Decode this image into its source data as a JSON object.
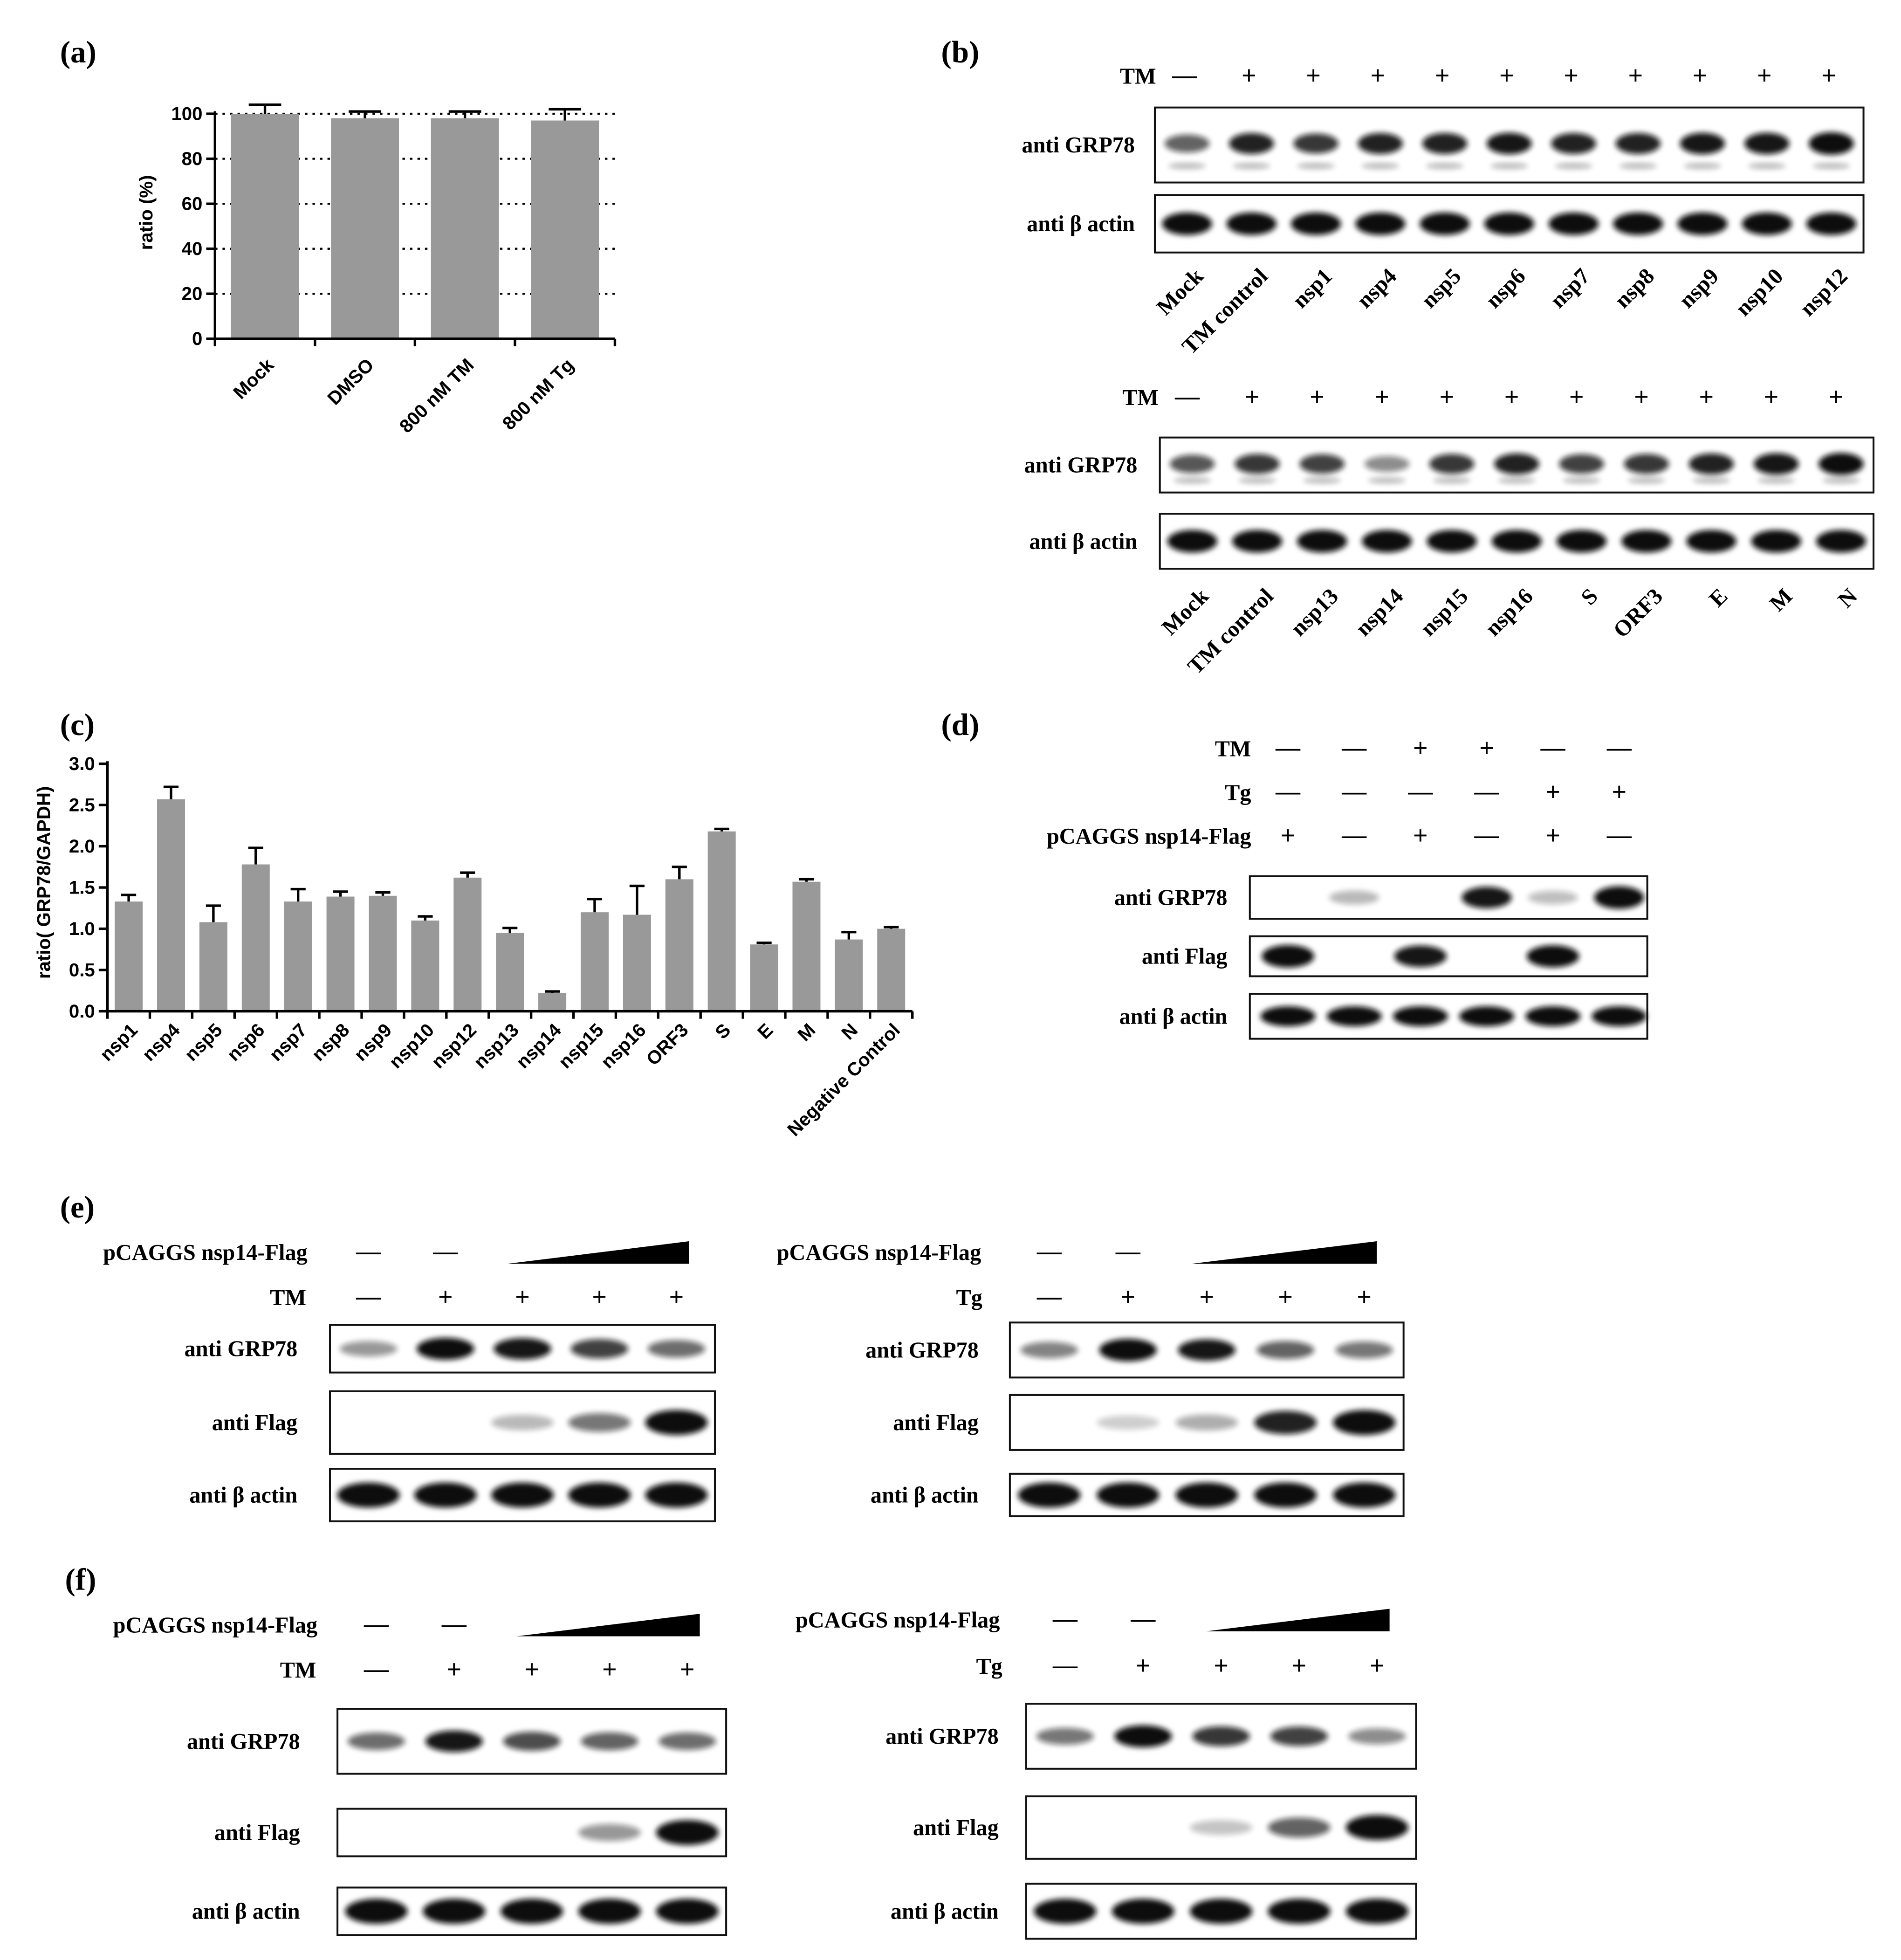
{
  "panels": {
    "a": "(a)",
    "b": "(b)",
    "c": "(c)",
    "d": "(d)",
    "e": "(e)",
    "f": "(f)"
  },
  "chart_a": {
    "type": "bar",
    "ylabel": "ratio (%)",
    "ylim": [
      0,
      100
    ],
    "yticks": [
      0,
      20,
      40,
      60,
      80,
      100
    ],
    "categories": [
      "Mock",
      "DMSO",
      "800 nM TM",
      "800 nM Tg"
    ],
    "values": [
      100,
      98,
      98,
      97
    ],
    "errors": [
      4,
      3,
      3,
      5
    ],
    "grid": "dotted horizontal",
    "bar_color": "#999999"
  },
  "chart_c": {
    "type": "bar",
    "ylabel": "ratio( GRP78/GAPDH)",
    "ylim": [
      0,
      3.0
    ],
    "yticks": [
      "0.0",
      "0.5",
      "1.0",
      "1.5",
      "2.0",
      "2.5",
      "3.0"
    ],
    "categories": [
      "nsp1",
      "nsp4",
      "nsp5",
      "nsp6",
      "nsp7",
      "nsp8",
      "nsp9",
      "nsp10",
      "nsp12",
      "nsp13",
      "nsp14",
      "nsp15",
      "nsp16",
      "ORF3",
      "S",
      "E",
      "M",
      "N",
      "Negative Control"
    ],
    "values": [
      1.33,
      2.57,
      1.08,
      1.78,
      1.33,
      1.39,
      1.4,
      1.1,
      1.62,
      0.95,
      0.22,
      1.2,
      1.17,
      1.6,
      2.18,
      0.81,
      1.57,
      0.87,
      1.0
    ],
    "errors": [
      0.08,
      0.15,
      0.2,
      0.2,
      0.15,
      0.06,
      0.04,
      0.05,
      0.06,
      0.06,
      0.02,
      0.16,
      0.35,
      0.15,
      0.03,
      0.02,
      0.03,
      0.09,
      0.02
    ],
    "bar_color": "#999999"
  },
  "b_top": {
    "cond_label": "TM",
    "signs": [
      "—",
      "+",
      "+",
      "+",
      "+",
      "+",
      "+",
      "+",
      "+",
      "+",
      "+"
    ],
    "row1": "anti GRP78",
    "row2": "anti β actin",
    "lanes": [
      "Mock",
      "TM control",
      "nsp1",
      "nsp4",
      "nsp5",
      "nsp6",
      "nsp7",
      "nsp8",
      "nsp9",
      "nsp10",
      "nsp12"
    ],
    "grp78": [
      0.55,
      0.85,
      0.75,
      0.85,
      0.85,
      0.9,
      0.85,
      0.85,
      0.9,
      0.9,
      1.0
    ]
  },
  "b_bottom": {
    "cond_label": "TM",
    "signs": [
      "—",
      "+",
      "+",
      "+",
      "+",
      "+",
      "+",
      "+",
      "+",
      "+",
      "+"
    ],
    "row1": "anti GRP78",
    "row2": "anti β actin",
    "lanes": [
      "Mock",
      "TM control",
      "nsp13",
      "nsp14",
      "nsp15",
      "nsp16",
      "S",
      "ORF3",
      "E",
      "M",
      "N"
    ],
    "grp78": [
      0.6,
      0.75,
      0.7,
      0.35,
      0.75,
      0.85,
      0.7,
      0.75,
      0.85,
      0.9,
      0.95
    ]
  },
  "d": {
    "conds": [
      {
        "label": "TM",
        "signs": [
          "—",
          "—",
          "+",
          "+",
          "—",
          "—"
        ]
      },
      {
        "label": "Tg",
        "signs": [
          "—",
          "—",
          "—",
          "—",
          "+",
          "+"
        ]
      },
      {
        "label": "pCAGGS nsp14-Flag",
        "signs": [
          "+",
          "—",
          "+",
          "—",
          "+",
          "—"
        ]
      }
    ],
    "rows": [
      "anti GRP78",
      "anti Flag",
      "anti β actin"
    ],
    "grp78": [
      0,
      0.15,
      0,
      0.9,
      0.12,
      1.0
    ],
    "flag": [
      1,
      0,
      0.9,
      0,
      0.95,
      0
    ]
  },
  "e_left": {
    "plasmid": "pCAGGS nsp14-Flag",
    "plasmid_signs": [
      "—",
      "—"
    ],
    "treat": "TM",
    "treat_signs": [
      "—",
      "+",
      "+",
      "+",
      "+"
    ],
    "rows": [
      "anti GRP78",
      "anti Flag",
      "anti β actin"
    ],
    "grp78": [
      0.3,
      0.95,
      0.9,
      0.7,
      0.5
    ],
    "flag": [
      0,
      0,
      0.15,
      0.45,
      1.0
    ]
  },
  "e_right": {
    "plasmid": "pCAGGS nsp14-Flag",
    "plasmid_signs": [
      "—",
      "—"
    ],
    "treat": "Tg",
    "treat_signs": [
      "—",
      "+",
      "+",
      "+",
      "+"
    ],
    "rows": [
      "anti GRP78",
      "anti Flag",
      "anti β actin"
    ],
    "grp78": [
      0.4,
      1.0,
      0.9,
      0.55,
      0.45
    ],
    "flag": [
      0,
      0.05,
      0.2,
      0.85,
      1.0
    ]
  },
  "f_left": {
    "plasmid": "pCAGGS nsp14-Flag",
    "plasmid_signs": [
      "—",
      "—"
    ],
    "treat": "TM",
    "treat_signs": [
      "—",
      "+",
      "+",
      "+",
      "+"
    ],
    "rows": [
      "anti GRP78",
      "anti Flag",
      "anti β actin"
    ],
    "grp78": [
      0.5,
      0.9,
      0.65,
      0.55,
      0.5
    ],
    "flag": [
      0,
      0,
      0,
      0.3,
      1.0
    ]
  },
  "f_right": {
    "plasmid": "pCAGGS nsp14-Flag",
    "plasmid_signs": [
      "—",
      "—"
    ],
    "treat": "Tg",
    "treat_signs": [
      "—",
      "+",
      "+",
      "+",
      "+"
    ],
    "rows": [
      "anti GRP78",
      "anti Flag",
      "anti β actin"
    ],
    "grp78": [
      0.45,
      0.95,
      0.75,
      0.7,
      0.35
    ],
    "flag": [
      0,
      0,
      0.1,
      0.55,
      1.0
    ]
  }
}
